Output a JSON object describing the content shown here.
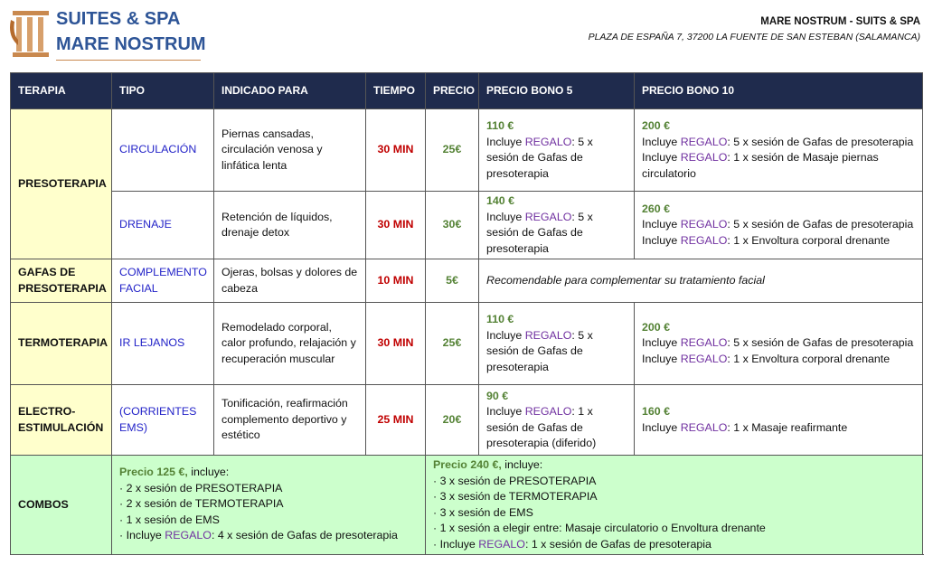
{
  "header": {
    "logo_line1": "SUITES & SPA",
    "logo_line2": "MARE NOSTRUM",
    "name": "MARE NOSTRUM - SUITS & SPA",
    "address": "PLAZA DE ESPAÑA 7, 37200 LA FUENTE DE SAN ESTEBAN (SALAMANCA)"
  },
  "table": {
    "columns": [
      "TERAPIA",
      "TIPO",
      "INDICADO PARA",
      "TIEMPO",
      "PRECIO",
      "PRECIO BONO 5",
      "PRECIO BONO 10"
    ],
    "groups": [
      {
        "terapia": "PRESOTERAPIA",
        "items": [
          {
            "tipo": "CIRCULACIÓN",
            "indicado": "Piernas cansadas, circulación venosa y linfática lenta",
            "tiempo": "30 MIN",
            "precio": "25€",
            "bono5": {
              "price": "110 €",
              "lines": [
                [
                  "Incluye ",
                  "REGALO",
                  ": 5 x sesión de Gafas de presoterapia"
                ]
              ]
            },
            "bono10": {
              "price": "200 €",
              "lines": [
                [
                  "Incluye ",
                  "REGALO",
                  ": 5 x sesión de Gafas de presoterapia"
                ],
                [
                  "Incluye ",
                  "REGALO",
                  ": 1 x sesión de Masaje piernas circulatorio"
                ]
              ]
            }
          },
          {
            "tipo": "DRENAJE",
            "indicado": "Retención de líquidos, drenaje detox",
            "tiempo": "30 MIN",
            "precio": "30€",
            "bono5": {
              "price": "140 €",
              "lines": [
                [
                  "Incluye ",
                  "REGALO",
                  ": 5 x sesión de Gafas de presoterapia"
                ]
              ]
            },
            "bono10": {
              "price": "260 €",
              "lines": [
                [
                  "Incluye ",
                  "REGALO",
                  ": 5 x sesión de Gafas de presoterapia"
                ],
                [
                  "Incluye ",
                  "REGALO",
                  ": 1 x Envoltura corporal drenante"
                ]
              ]
            }
          }
        ]
      },
      {
        "terapia": "GAFAS DE PRESOTERAPIA",
        "items": [
          {
            "tipo": "COMPLEMENTO FACIAL",
            "indicado": "Ojeras, bolsas y dolores de cabeza",
            "tiempo": "10 MIN",
            "precio": "5€",
            "note": "Recomendable para complementar su tratamiento facial"
          }
        ]
      },
      {
        "terapia": "TERMOTERAPIA",
        "items": [
          {
            "tipo": "IR LEJANOS",
            "indicado": "Remodelado corporal, calor profundo, relajación y recuperación muscular",
            "tiempo": "30 MIN",
            "precio": "25€",
            "bono5": {
              "price": "110 €",
              "lines": [
                [
                  "Incluye ",
                  "REGALO",
                  ": 5 x sesión de Gafas de presoterapia"
                ]
              ]
            },
            "bono10": {
              "price": "200 €",
              "lines": [
                [
                  "Incluye ",
                  "REGALO",
                  ": 5 x sesión de Gafas de presoterapia"
                ],
                [
                  "Incluye ",
                  "REGALO",
                  ": 1 x Envoltura corporal drenante"
                ]
              ]
            }
          }
        ]
      },
      {
        "terapia": "ELECTRO-ESTIMULACIÓN",
        "items": [
          {
            "tipo": "(CORRIENTES EMS)",
            "indicado": "Tonificación, reafirmación complemento deportivo y estético",
            "tiempo": "25 MIN",
            "precio": "20€",
            "bono5": {
              "price": "90 €",
              "lines": [
                [
                  "Incluye ",
                  "REGALO",
                  ": 1 x sesión de Gafas de presoterapia (diferido)"
                ]
              ]
            },
            "bono10": {
              "price": "160 €",
              "lines": [
                [
                  "Incluye ",
                  "REGALO",
                  ": 1 x Masaje reafirmante"
                ]
              ]
            }
          }
        ]
      }
    ],
    "combos": {
      "label": "COMBOS",
      "left": {
        "price": "Precio 125 €,",
        "rest": " incluye:",
        "lines": [
          [
            "· 2 x sesión de PRESOTERAPIA"
          ],
          [
            "· 2 x sesión de TERMOTERAPIA"
          ],
          [
            "· 1 x sesión de EMS"
          ],
          [
            "· Incluye ",
            "REGALO",
            ": 4 x sesión de Gafas de presoterapia"
          ]
        ]
      },
      "right": {
        "price": "Precio 240 €,",
        "rest": " incluye:",
        "lines": [
          [
            "· 3 x sesión de PRESOTERAPIA"
          ],
          [
            "· 3 x sesión de TERMOTERAPIA"
          ],
          [
            "· 3 x sesión de EMS"
          ],
          [
            "· 1 x sesión a elegir entre: Masaje circulatorio o Envoltura drenante"
          ],
          [
            "· Incluye ",
            "REGALO",
            ": 1 x sesión de Gafas de presoterapia"
          ]
        ]
      }
    }
  }
}
